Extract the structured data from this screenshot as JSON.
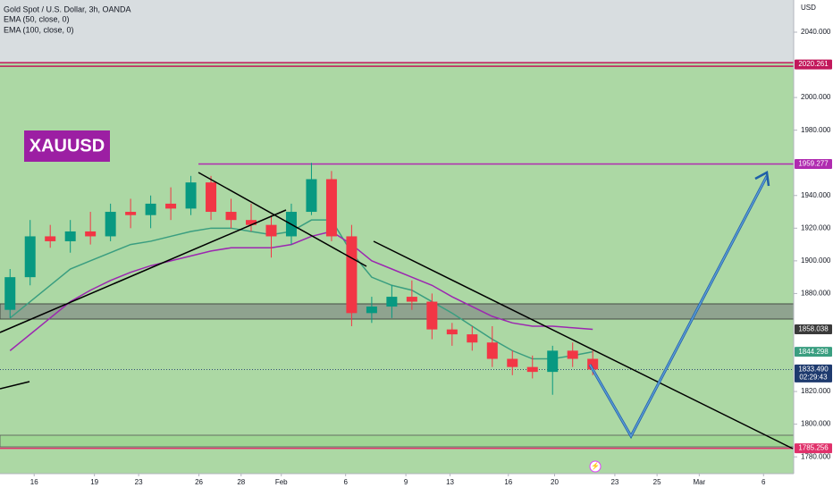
{
  "chart_data": {
    "type": "candlestick",
    "title": "Gold Spot / U.S. Dollar, 3h, OANDA",
    "indicators": [
      "EMA (50, close, 0)",
      "EMA (100, close, 0)"
    ],
    "badge": "XAUUSD",
    "currency": "USD",
    "countdown": "02:29:43",
    "ylim": [
      1769.7,
      2059.7
    ],
    "yticks": [
      {
        "value": 2040,
        "label": "2040.000"
      },
      {
        "value": 2000,
        "label": "2000.000"
      },
      {
        "value": 1980,
        "label": "1980.000"
      },
      {
        "value": 1940,
        "label": "1940.000"
      },
      {
        "value": 1920,
        "label": "1920.000"
      },
      {
        "value": 1900,
        "label": "1900.000"
      },
      {
        "value": 1880,
        "label": "1880.000"
      },
      {
        "value": 1820,
        "label": "1820.000"
      },
      {
        "value": 1800,
        "label": "1800.000"
      },
      {
        "value": 1780,
        "label": "1780.000"
      }
    ],
    "xlim": [
      0,
      39.5
    ],
    "xticks": [
      {
        "value": 1.7,
        "label": "16"
      },
      {
        "value": 4.7,
        "label": "19"
      },
      {
        "value": 6.9,
        "label": "23"
      },
      {
        "value": 9.9,
        "label": "26"
      },
      {
        "value": 12,
        "label": "28"
      },
      {
        "value": 14,
        "label": "Feb"
      },
      {
        "value": 17.2,
        "label": "6"
      },
      {
        "value": 20.2,
        "label": "9"
      },
      {
        "value": 22.4,
        "label": "13"
      },
      {
        "value": 25.3,
        "label": "16"
      },
      {
        "value": 27.6,
        "label": "20"
      },
      {
        "value": 30.6,
        "label": "23"
      },
      {
        "value": 32.7,
        "label": "25"
      },
      {
        "value": 34.8,
        "label": "Mar"
      },
      {
        "value": 38,
        "label": "6"
      }
    ],
    "x": [
      0.5,
      1.5,
      2.5,
      3.5,
      4.5,
      5.5,
      6.5,
      7.5,
      8.5,
      9.5,
      10.5,
      11.5,
      12.5,
      13.5,
      14.5,
      15.5,
      16.5,
      17.5,
      18.5,
      19.5,
      20.5,
      21.5,
      22.5,
      23.5,
      24.5,
      25.5,
      26.5,
      27.5,
      28.5,
      29.5
    ],
    "open": [
      1870,
      1890,
      1915,
      1912,
      1918,
      1915,
      1930,
      1928,
      1935,
      1932,
      1948,
      1930,
      1925,
      1922,
      1915,
      1930,
      1950,
      1915,
      1868,
      1872,
      1878,
      1875,
      1858,
      1855,
      1850,
      1840,
      1835,
      1832,
      1845,
      1840
    ],
    "high": [
      1895,
      1925,
      1922,
      1925,
      1930,
      1935,
      1938,
      1940,
      1945,
      1952,
      1952,
      1938,
      1935,
      1928,
      1935,
      1960,
      1955,
      1922,
      1878,
      1885,
      1888,
      1880,
      1862,
      1860,
      1860,
      1845,
      1842,
      1848,
      1850,
      1845
    ],
    "low": [
      1865,
      1885,
      1908,
      1905,
      1910,
      1912,
      1920,
      1920,
      1925,
      1928,
      1925,
      1920,
      1918,
      1902,
      1910,
      1928,
      1912,
      1860,
      1862,
      1865,
      1870,
      1852,
      1848,
      1845,
      1835,
      1830,
      1828,
      1818,
      1835,
      1830
    ],
    "close": [
      1890,
      1915,
      1912,
      1918,
      1915,
      1930,
      1928,
      1935,
      1932,
      1948,
      1930,
      1925,
      1922,
      1915,
      1930,
      1950,
      1915,
      1868,
      1872,
      1878,
      1875,
      1858,
      1855,
      1850,
      1840,
      1835,
      1832,
      1845,
      1840,
      1833.49
    ],
    "up_color": "#089981",
    "down_color": "#f23645",
    "series": [
      {
        "name": "EMA (50, close, 0)",
        "color": "#3a9e80",
        "values": [
          1865,
          1875,
          1885,
          1895,
          1900,
          1905,
          1910,
          1912,
          1915,
          1918,
          1920,
          1920,
          1918,
          1916,
          1918,
          1925,
          1925,
          1905,
          1890,
          1885,
          1882,
          1875,
          1868,
          1860,
          1852,
          1845,
          1840,
          1840,
          1842,
          1844.298
        ]
      },
      {
        "name": "EMA (100, close, 0)",
        "color": "#9c27b0",
        "values": [
          1845,
          1855,
          1865,
          1875,
          1882,
          1888,
          1893,
          1897,
          1900,
          1903,
          1906,
          1908,
          1908,
          1908,
          1910,
          1915,
          1918,
          1910,
          1900,
          1895,
          1890,
          1885,
          1878,
          1872,
          1866,
          1862,
          1860,
          1860,
          1859,
          1858.038
        ]
      }
    ],
    "levels": [
      {
        "value": 2020.261,
        "label": "2020.261",
        "color": "#c2185b"
      },
      {
        "value": 1959.277,
        "label": "1959.277",
        "color": "#b02bb0"
      },
      {
        "value": 1858.038,
        "label": "1858.038",
        "color": "#3a3a3a"
      },
      {
        "value": 1844.298,
        "label": "1844.298",
        "color": "#3a9e80"
      },
      {
        "value": 1833.49,
        "label": "1833.490",
        "color": "#1e3a6e"
      },
      {
        "value": 1785.256,
        "label": "1785.256",
        "color": "#e0306a"
      }
    ]
  }
}
